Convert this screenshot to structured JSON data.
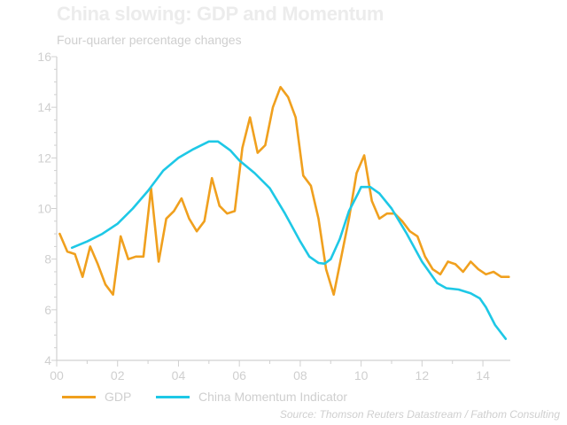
{
  "chart_data": {
    "type": "line",
    "title": "China slowing: GDP and Momentum",
    "subtitle": "Four-quarter percentage changes",
    "xlabel": "",
    "ylabel": "",
    "xlim": [
      2000,
      2014.9
    ],
    "ylim": [
      4,
      16
    ],
    "yticks": [
      4,
      6,
      8,
      10,
      12,
      14,
      16
    ],
    "xticks": [
      {
        "value": 2000,
        "label": "00"
      },
      {
        "value": 2002,
        "label": "02"
      },
      {
        "value": 2004,
        "label": "04"
      },
      {
        "value": 2006,
        "label": "06"
      },
      {
        "value": 2008,
        "label": "08"
      },
      {
        "value": 2010,
        "label": "10"
      },
      {
        "value": 2012,
        "label": "12"
      },
      {
        "value": 2014,
        "label": "14"
      }
    ],
    "grid": false,
    "legend_position": "bottom",
    "series": [
      {
        "name": "GDP",
        "color": "#f0a01e",
        "points": [
          [
            2000.1,
            9.0
          ],
          [
            2000.35,
            8.3
          ],
          [
            2000.6,
            8.2
          ],
          [
            2000.85,
            7.3
          ],
          [
            2001.1,
            8.5
          ],
          [
            2001.35,
            7.8
          ],
          [
            2001.6,
            7.0
          ],
          [
            2001.85,
            6.6
          ],
          [
            2002.1,
            8.9
          ],
          [
            2002.35,
            8.0
          ],
          [
            2002.6,
            8.1
          ],
          [
            2002.85,
            8.1
          ],
          [
            2003.1,
            10.8
          ],
          [
            2003.35,
            7.9
          ],
          [
            2003.6,
            9.6
          ],
          [
            2003.85,
            9.9
          ],
          [
            2004.1,
            10.4
          ],
          [
            2004.35,
            9.6
          ],
          [
            2004.6,
            9.1
          ],
          [
            2004.85,
            9.5
          ],
          [
            2005.1,
            11.2
          ],
          [
            2005.35,
            10.1
          ],
          [
            2005.6,
            9.8
          ],
          [
            2005.85,
            9.9
          ],
          [
            2006.1,
            12.4
          ],
          [
            2006.35,
            13.6
          ],
          [
            2006.6,
            12.2
          ],
          [
            2006.85,
            12.5
          ],
          [
            2007.1,
            14.0
          ],
          [
            2007.35,
            14.8
          ],
          [
            2007.6,
            14.4
          ],
          [
            2007.85,
            13.6
          ],
          [
            2008.1,
            11.3
          ],
          [
            2008.35,
            10.9
          ],
          [
            2008.6,
            9.6
          ],
          [
            2008.85,
            7.6
          ],
          [
            2009.1,
            6.6
          ],
          [
            2009.35,
            8.1
          ],
          [
            2009.6,
            9.6
          ],
          [
            2009.85,
            11.4
          ],
          [
            2010.1,
            12.1
          ],
          [
            2010.35,
            10.3
          ],
          [
            2010.6,
            9.6
          ],
          [
            2010.85,
            9.8
          ],
          [
            2011.1,
            9.8
          ],
          [
            2011.35,
            9.5
          ],
          [
            2011.6,
            9.1
          ],
          [
            2011.85,
            8.9
          ],
          [
            2012.1,
            8.1
          ],
          [
            2012.35,
            7.6
          ],
          [
            2012.6,
            7.4
          ],
          [
            2012.85,
            7.9
          ],
          [
            2013.1,
            7.8
          ],
          [
            2013.35,
            7.5
          ],
          [
            2013.6,
            7.9
          ],
          [
            2013.85,
            7.6
          ],
          [
            2014.1,
            7.4
          ],
          [
            2014.35,
            7.5
          ],
          [
            2014.6,
            7.3
          ],
          [
            2014.85,
            7.3
          ]
        ]
      },
      {
        "name": "China Momentum Indicator",
        "color": "#1ec8e6",
        "points": [
          [
            2000.5,
            8.45
          ],
          [
            2001.0,
            8.7
          ],
          [
            2001.5,
            9.0
          ],
          [
            2002.0,
            9.4
          ],
          [
            2002.5,
            10.0
          ],
          [
            2003.0,
            10.7
          ],
          [
            2003.5,
            11.5
          ],
          [
            2004.0,
            12.0
          ],
          [
            2004.5,
            12.35
          ],
          [
            2005.0,
            12.65
          ],
          [
            2005.3,
            12.65
          ],
          [
            2005.7,
            12.3
          ],
          [
            2006.0,
            11.9
          ],
          [
            2006.5,
            11.4
          ],
          [
            2007.0,
            10.8
          ],
          [
            2007.5,
            9.8
          ],
          [
            2008.0,
            8.7
          ],
          [
            2008.3,
            8.1
          ],
          [
            2008.6,
            7.85
          ],
          [
            2008.8,
            7.82
          ],
          [
            2009.0,
            8.0
          ],
          [
            2009.3,
            8.8
          ],
          [
            2009.6,
            9.9
          ],
          [
            2009.9,
            10.6
          ],
          [
            2010.0,
            10.85
          ],
          [
            2010.3,
            10.85
          ],
          [
            2010.6,
            10.6
          ],
          [
            2011.0,
            10.0
          ],
          [
            2011.5,
            9.0
          ],
          [
            2012.0,
            7.9
          ],
          [
            2012.5,
            7.05
          ],
          [
            2012.8,
            6.85
          ],
          [
            2013.2,
            6.8
          ],
          [
            2013.6,
            6.65
          ],
          [
            2013.9,
            6.45
          ],
          [
            2014.1,
            6.1
          ],
          [
            2014.4,
            5.4
          ],
          [
            2014.75,
            4.85
          ]
        ]
      }
    ],
    "source": "Source: Thomson Reuters Datastream / Fathom Consulting"
  }
}
